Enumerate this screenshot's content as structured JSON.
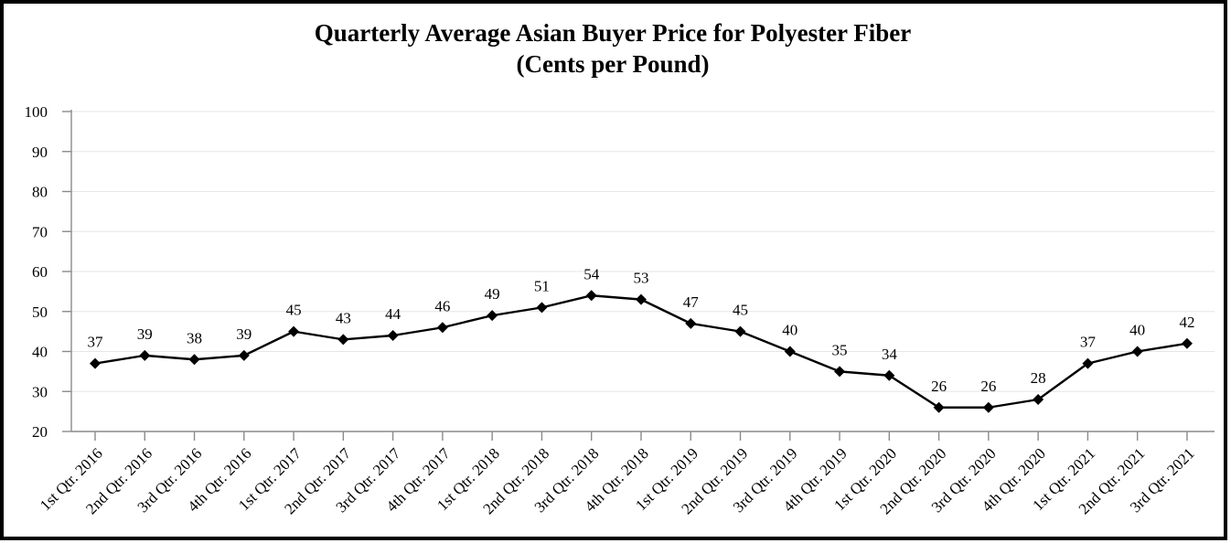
{
  "chart_data": {
    "type": "line",
    "title": "Quarterly Average Asian Buyer Price for Polyester Fiber",
    "subtitle": "(Cents per Pound)",
    "xlabel": "",
    "ylabel": "",
    "legend_position": "none",
    "grid": true,
    "ylim": [
      20,
      100
    ],
    "y_ticks": [
      20,
      30,
      40,
      50,
      60,
      70,
      80,
      90,
      100
    ],
    "categories": [
      "1st Qtr. 2016",
      "2nd Qtr. 2016",
      "3rd Qtr. 2016",
      "4th Qtr. 2016",
      "1st Qtr. 2017",
      "2nd Qtr. 2017",
      "3rd Qtr. 2017",
      "4th Qtr. 2017",
      "1st Qtr. 2018",
      "2nd Qtr. 2018",
      "3rd Qtr. 2018",
      "4th Qtr. 2018",
      "1st Qtr. 2019",
      "2nd Qtr. 2019",
      "3rd Qtr. 2019",
      "4th Qtr. 2019",
      "1st Qtr. 2020",
      "2nd Qtr. 2020",
      "3rd Qtr. 2020",
      "4th Qtr. 2020",
      "1st Qtr. 2021",
      "2nd Qtr. 2021",
      "3rd Qtr. 2021"
    ],
    "series": [
      {
        "name": "Quarterly Average Asian Buyer Price",
        "values": [
          37,
          39,
          38,
          39,
          45,
          43,
          44,
          46,
          49,
          51,
          54,
          53,
          47,
          45,
          40,
          35,
          34,
          26,
          26,
          28,
          37,
          40,
          42
        ]
      }
    ],
    "marker": "diamond",
    "colors": {
      "line": "#000000",
      "marker": "#000000",
      "axis": "#8a8a8a",
      "gridline": "#e6e6e6",
      "text": "#000000",
      "frame_border": "#000000",
      "background": "#ffffff"
    }
  }
}
